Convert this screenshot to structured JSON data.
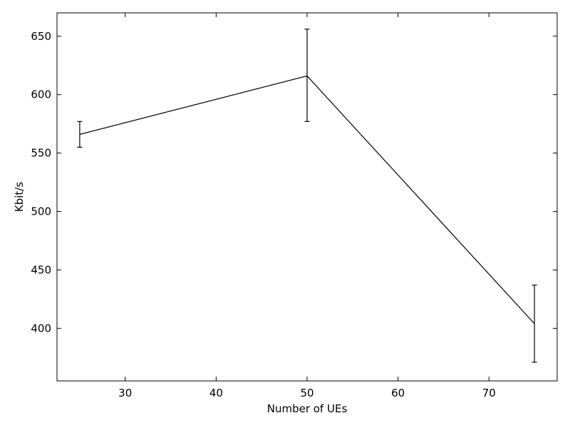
{
  "chart_data": {
    "type": "line",
    "title": "",
    "xlabel": "Number of UEs",
    "ylabel": "Kbit/s",
    "xlim": [
      22.5,
      77.5
    ],
    "ylim": [
      355,
      670
    ],
    "xticks": [
      30,
      40,
      50,
      60,
      70
    ],
    "yticks": [
      400,
      450,
      500,
      550,
      600,
      650
    ],
    "grid": false,
    "series": [
      {
        "color": "#000000",
        "x": [
          25,
          50,
          75
        ],
        "y": [
          566,
          616,
          404
        ],
        "yerr_low": [
          555,
          577,
          371
        ],
        "yerr_high": [
          577,
          656,
          437
        ]
      }
    ]
  }
}
